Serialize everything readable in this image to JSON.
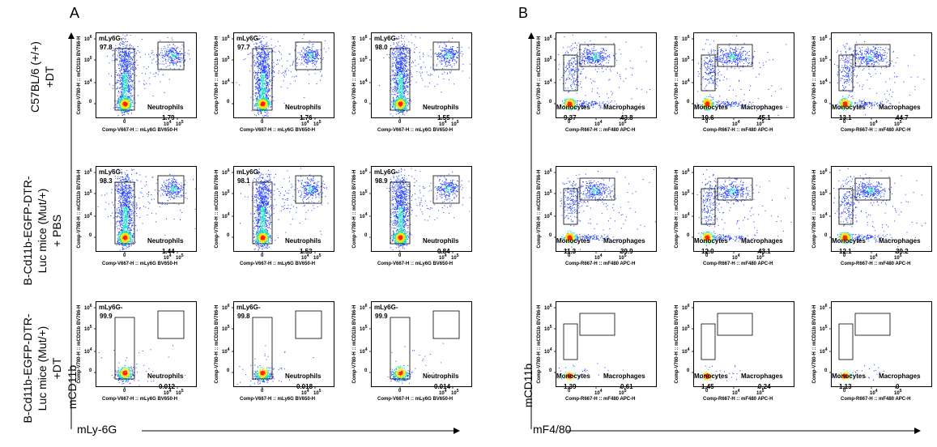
{
  "panels": [
    {
      "letter": "A",
      "x_axis_title": "mLy-6G",
      "y_axis_title": "mCD11b",
      "x_channel": "Comp-V667-H :: mLy6G BV650-H",
      "y_channel": "Comp-V780-H :: mCD11b BV786-H",
      "x_ticks": [
        "0",
        "10",
        "10"
      ],
      "x_tick_exps": [
        "",
        "4",
        "5"
      ],
      "y_ticks": [
        "0",
        "10",
        "10",
        "10"
      ],
      "y_tick_exps": [
        "",
        "4",
        "5",
        "6"
      ],
      "gate_left": "mLy6G-",
      "gate_right": "Neutrophils",
      "rows": [
        {
          "plots": [
            {
              "left": "97.8",
              "right": "1.79"
            },
            {
              "left": "97.7",
              "right": "1.76"
            },
            {
              "left": "98.0",
              "right": "1.55"
            }
          ]
        },
        {
          "plots": [
            {
              "left": "98.3",
              "right": "1.44"
            },
            {
              "left": "98.1",
              "right": "1.53"
            },
            {
              "left": "98.9",
              "right": "0.84"
            }
          ]
        },
        {
          "plots": [
            {
              "left": "99.9",
              "right": "0.012"
            },
            {
              "left": "99.8",
              "right": "0.018"
            },
            {
              "left": "99.9",
              "right": "0.014"
            }
          ]
        }
      ]
    },
    {
      "letter": "B",
      "x_axis_title": "mF4/80",
      "y_axis_title": "mCD11b",
      "x_channel": "Comp-R667-H :: mF480 APC-H",
      "y_channel": "Comp-V780-H :: mCD11b BV786-H",
      "x_ticks": [
        "0",
        "10",
        "10"
      ],
      "x_tick_exps": [
        "",
        "4",
        "5"
      ],
      "y_ticks": [
        "0",
        "10",
        "10",
        "10"
      ],
      "y_tick_exps": [
        "",
        "4",
        "5",
        "6"
      ],
      "gate_left": "Monocytes",
      "gate_right": "Macrophages",
      "rows": [
        {
          "plots": [
            {
              "left": "9.37",
              "right": "43.8"
            },
            {
              "left": "10.6",
              "right": "45.1"
            },
            {
              "left": "13.1",
              "right": "44.7"
            }
          ]
        },
        {
          "plots": [
            {
              "left": "11.3",
              "right": "39.9"
            },
            {
              "left": "12.0",
              "right": "43.1"
            },
            {
              "left": "12.1",
              "right": "39.2"
            }
          ]
        },
        {
          "plots": [
            {
              "left": "1.39",
              "right": "0.61"
            },
            {
              "left": "1.45",
              "right": "0.24"
            },
            {
              "left": "1.13",
              "right": "0"
            }
          ]
        }
      ]
    }
  ],
  "row_labels": [
    [
      "C57BL/6 (+/+)",
      "+DT"
    ],
    [
      "B-Cd11b-EGFP-DTR-",
      "Luc mice (Mut/+)",
      "+ PBS"
    ],
    [
      "B-Cd11b-EGFP-DTR-",
      "Luc mice (Mut/+)",
      "+DT"
    ]
  ],
  "colors": {
    "low": "#1e3cff",
    "mid": "#00e0c0",
    "hi": "#ffe000",
    "peak": "#ff2000"
  }
}
